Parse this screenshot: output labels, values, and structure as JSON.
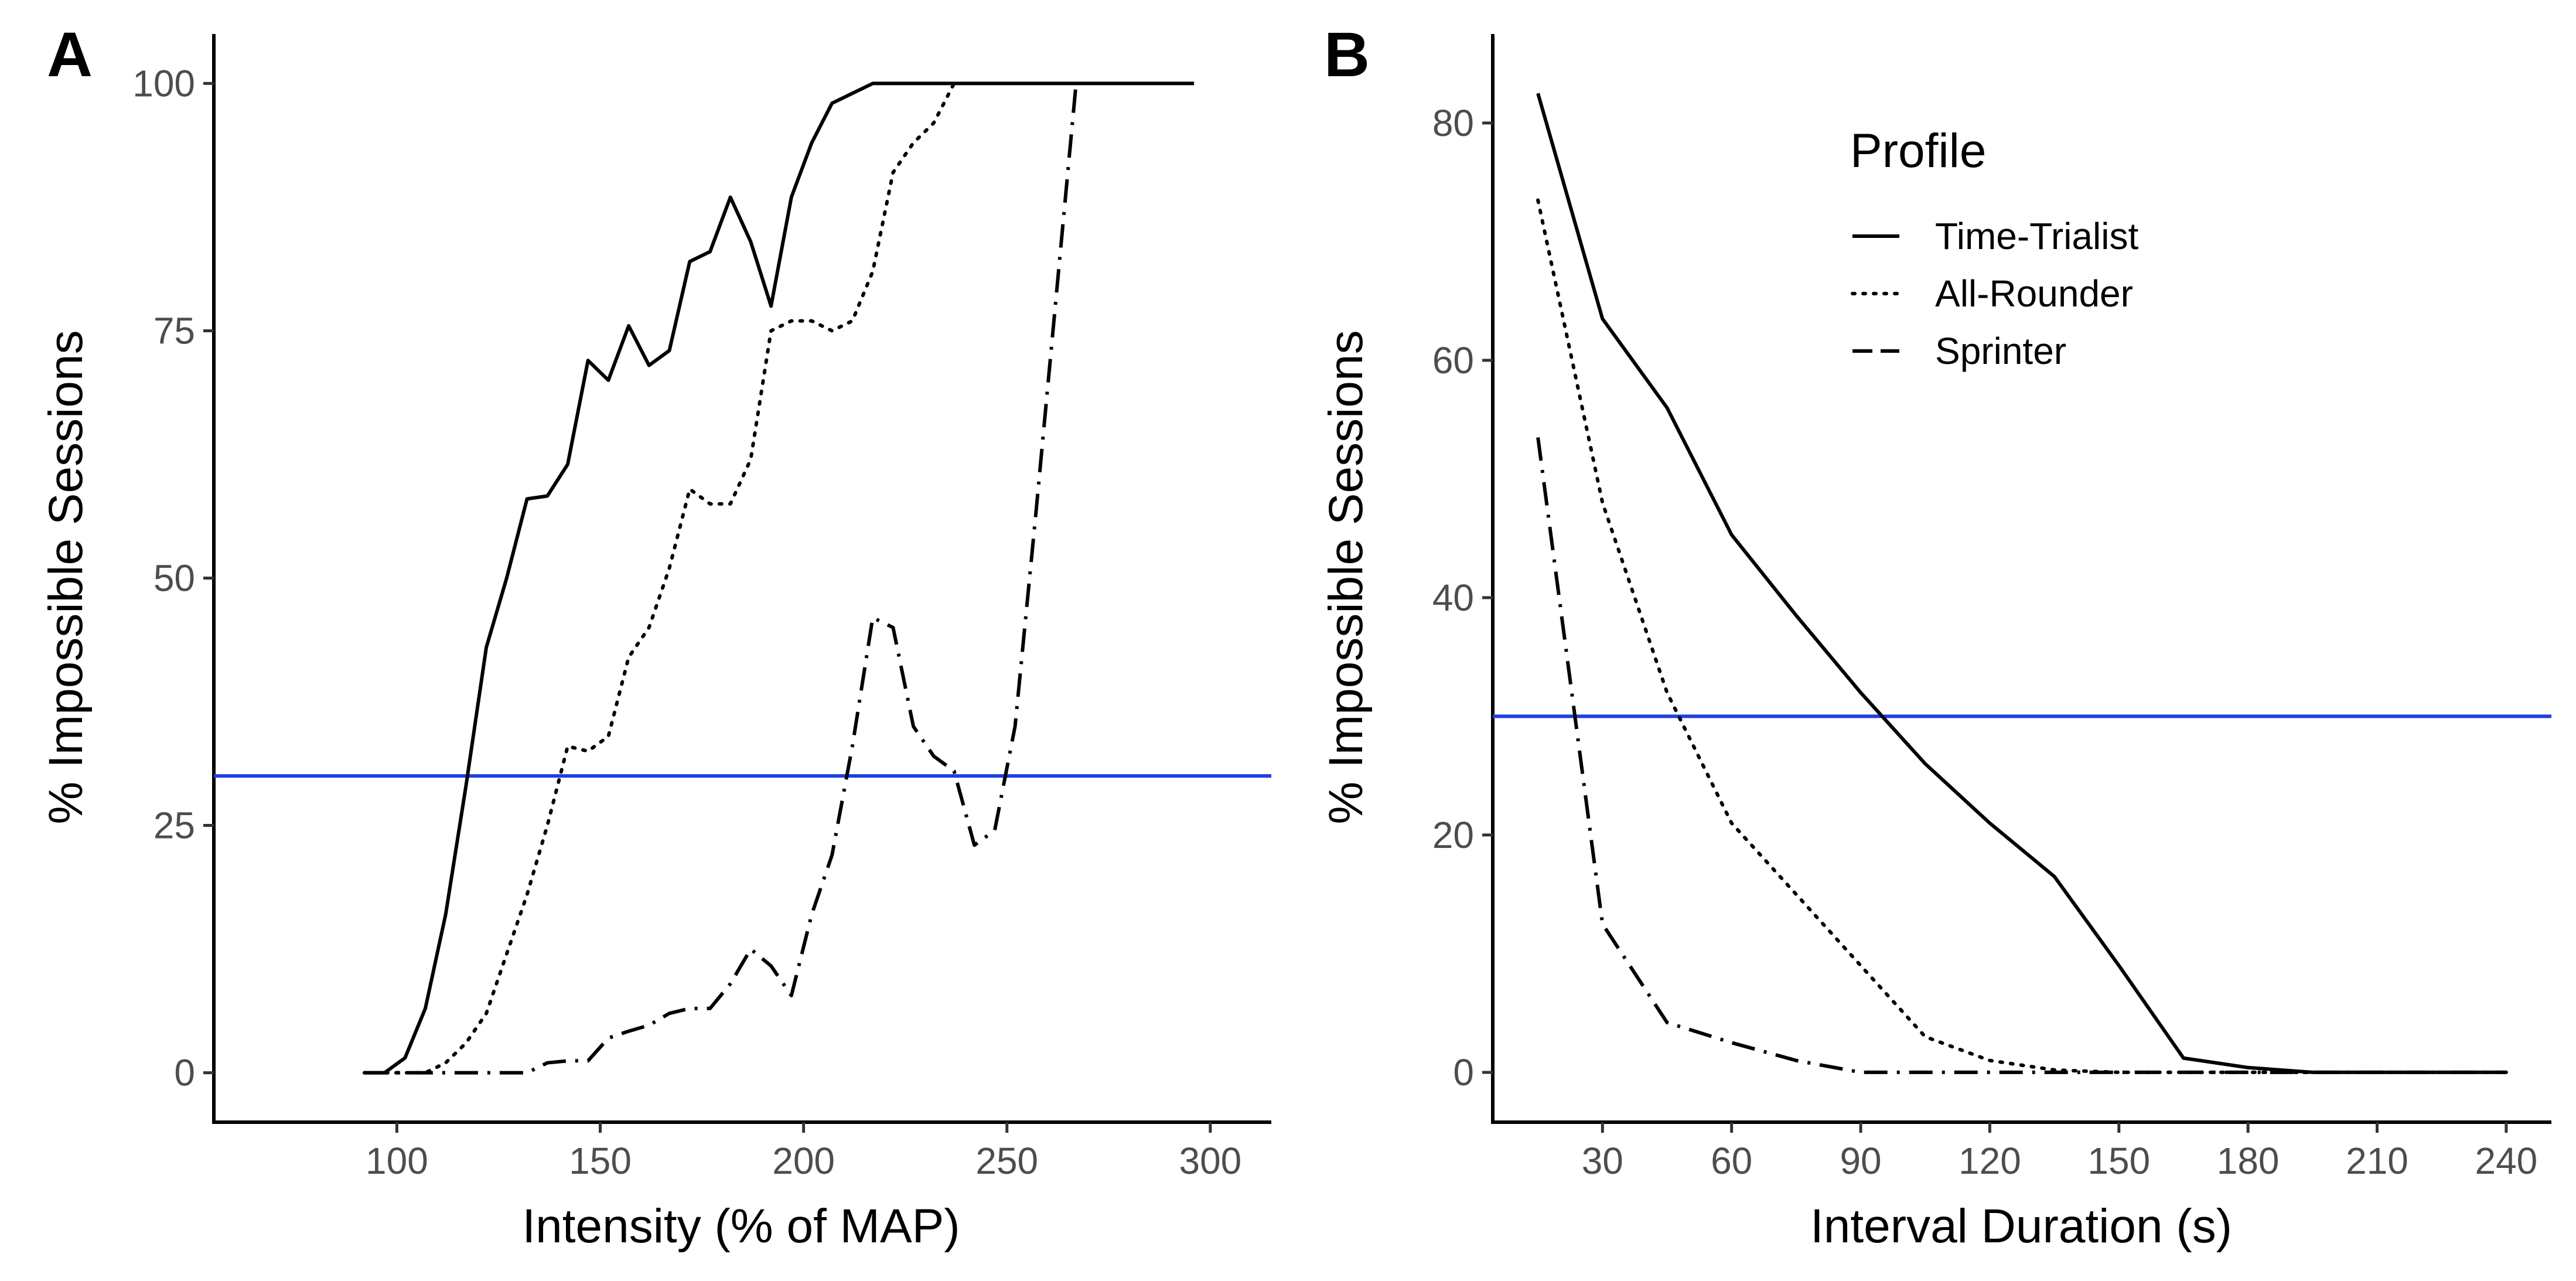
{
  "chart_data": [
    {
      "panel_label": "A",
      "type": "line",
      "xlabel": "Intensity (% of MAP)",
      "ylabel": "% Impossible Sessions",
      "xlim": [
        55,
        315
      ],
      "ylim": [
        -5,
        105
      ],
      "xticks": [
        100,
        150,
        200,
        250,
        300
      ],
      "yticks": [
        0,
        25,
        50,
        75,
        100
      ],
      "xtick_labels": [
        "100",
        "150",
        "200",
        "250",
        "300"
      ],
      "ytick_labels": [
        "0",
        "25",
        "50",
        "75",
        "100"
      ],
      "hline": {
        "y": 30,
        "color": "#1f3fe0"
      },
      "series": [
        {
          "name": "Time-Trialist",
          "linestyle": "solid",
          "points": [
            [
              92,
              0
            ],
            [
              97,
              0
            ],
            [
              102,
              1.5
            ],
            [
              107,
              6.5
            ],
            [
              112,
              16
            ],
            [
              117,
              29
            ],
            [
              122,
              43
            ],
            [
              127,
              50
            ],
            [
              132,
              58
            ],
            [
              137,
              58.3
            ],
            [
              142,
              61.5
            ],
            [
              147,
              72
            ],
            [
              152,
              70
            ],
            [
              157,
              75.5
            ],
            [
              162,
              71.5
            ],
            [
              167,
              73
            ],
            [
              172,
              82
            ],
            [
              177,
              83
            ],
            [
              182,
              88.5
            ],
            [
              187,
              84
            ],
            [
              192,
              77.5
            ],
            [
              197,
              88.5
            ],
            [
              202,
              94
            ],
            [
              207,
              98
            ],
            [
              212,
              99
            ],
            [
              217,
              100
            ],
            [
              296,
              100
            ]
          ]
        },
        {
          "name": "All-Rounder",
          "linestyle": "dotted",
          "points": [
            [
              92,
              0
            ],
            [
              107,
              0
            ],
            [
              112,
              1
            ],
            [
              117,
              3
            ],
            [
              122,
              6
            ],
            [
              127,
              12
            ],
            [
              132,
              18
            ],
            [
              137,
              25
            ],
            [
              142,
              33
            ],
            [
              147,
              32.5
            ],
            [
              152,
              34
            ],
            [
              157,
              42
            ],
            [
              162,
              45
            ],
            [
              167,
              51
            ],
            [
              172,
              59
            ],
            [
              177,
              57.5
            ],
            [
              182,
              57.5
            ],
            [
              187,
              62
            ],
            [
              192,
              75
            ],
            [
              197,
              76
            ],
            [
              202,
              76
            ],
            [
              207,
              75
            ],
            [
              212,
              76
            ],
            [
              217,
              81
            ],
            [
              222,
              91
            ],
            [
              227,
              94
            ],
            [
              232,
              96
            ],
            [
              237,
              100
            ]
          ]
        },
        {
          "name": "Sprinter",
          "linestyle": "dashdot",
          "points": [
            [
              92,
              0
            ],
            [
              127,
              0
            ],
            [
              132,
              0
            ],
            [
              137,
              1
            ],
            [
              142,
              1.2
            ],
            [
              147,
              1.2
            ],
            [
              152,
              3.5
            ],
            [
              157,
              4.2
            ],
            [
              162,
              4.8
            ],
            [
              167,
              6
            ],
            [
              172,
              6.5
            ],
            [
              177,
              6.5
            ],
            [
              182,
              9
            ],
            [
              187,
              12.5
            ],
            [
              192,
              10.8
            ],
            [
              197,
              7.8
            ],
            [
              202,
              16
            ],
            [
              207,
              22
            ],
            [
              212,
              33
            ],
            [
              217,
              46
            ],
            [
              222,
              45
            ],
            [
              227,
              35
            ],
            [
              232,
              32
            ],
            [
              237,
              30.5
            ],
            [
              242,
              23
            ],
            [
              247,
              24.5
            ],
            [
              252,
              35
            ],
            [
              257,
              56
            ],
            [
              262,
              78
            ],
            [
              267,
              100
            ]
          ]
        }
      ]
    },
    {
      "panel_label": "B",
      "type": "line",
      "xlabel": "Interval Duration (s)",
      "ylabel": "% Impossible Sessions",
      "xlim": [
        4.5,
        250.5
      ],
      "ylim": [
        -4.2,
        87.5
      ],
      "xticks": [
        30,
        60,
        90,
        120,
        150,
        180,
        210,
        240
      ],
      "yticks": [
        0,
        20,
        40,
        60,
        80
      ],
      "xtick_labels": [
        "30",
        "60",
        "90",
        "120",
        "150",
        "180",
        "210",
        "240"
      ],
      "ytick_labels": [
        "0",
        "20",
        "40",
        "60",
        "80"
      ],
      "hline": {
        "y": 30,
        "color": "#1f3fe0"
      },
      "legend": {
        "title": "Profile",
        "position": "top-right",
        "entries": [
          "Time-Trialist",
          "All-Rounder",
          "Sprinter"
        ]
      },
      "series": [
        {
          "name": "Time-Trialist",
          "linestyle": "solid",
          "points": [
            [
              15,
              82.5
            ],
            [
              30,
              63.5
            ],
            [
              45,
              56
            ],
            [
              60,
              45.3
            ],
            [
              75,
              38.5
            ],
            [
              90,
              32
            ],
            [
              105,
              26
            ],
            [
              120,
              21
            ],
            [
              135,
              16.5
            ],
            [
              150,
              9
            ],
            [
              165,
              1.2
            ],
            [
              180,
              0.4
            ],
            [
              195,
              0
            ],
            [
              240,
              0
            ]
          ]
        },
        {
          "name": "All-Rounder",
          "linestyle": "dotted",
          "points": [
            [
              15,
              73.5
            ],
            [
              30,
              48
            ],
            [
              45,
              32
            ],
            [
              60,
              21
            ],
            [
              75,
              15
            ],
            [
              90,
              9
            ],
            [
              105,
              3
            ],
            [
              120,
              1
            ],
            [
              135,
              0.2
            ],
            [
              150,
              0
            ],
            [
              240,
              0
            ]
          ]
        },
        {
          "name": "Sprinter",
          "linestyle": "dashdot",
          "points": [
            [
              15,
              53.5
            ],
            [
              30,
              12.5
            ],
            [
              45,
              4.2
            ],
            [
              60,
              2.5
            ],
            [
              75,
              1
            ],
            [
              90,
              0
            ],
            [
              105,
              0
            ],
            [
              240,
              0
            ]
          ]
        }
      ]
    }
  ]
}
